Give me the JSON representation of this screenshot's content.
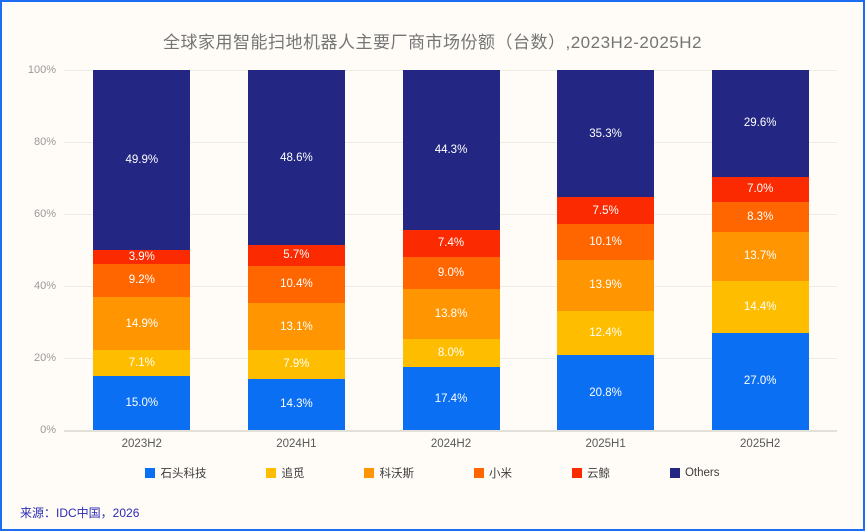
{
  "frame": {
    "border_color": "#1d6cf4",
    "background": "#fffcf7"
  },
  "title": "全球家用智能扫地机器人主要厂商市场份额（台数）,2023H2-2025H2",
  "source": "来源：IDC中国，2026",
  "chart_data": {
    "type": "bar",
    "stacked": true,
    "title": "全球家用智能扫地机器人主要厂商市场份额（台数）,2023H2-2025H2",
    "categories": [
      "2023H2",
      "2024H1",
      "2024H2",
      "2025H1",
      "2025H2"
    ],
    "series": [
      {
        "name": "石头科技",
        "color": "#0a6ff2",
        "values": [
          15.0,
          14.3,
          17.4,
          20.8,
          27.0
        ]
      },
      {
        "name": "追觅",
        "color": "#ffbd00",
        "values": [
          7.1,
          7.9,
          8.0,
          12.4,
          14.4
        ]
      },
      {
        "name": "科沃斯",
        "color": "#ff9500",
        "values": [
          14.9,
          13.1,
          13.8,
          13.9,
          13.7
        ]
      },
      {
        "name": "小米",
        "color": "#ff6600",
        "values": [
          9.2,
          10.4,
          9.0,
          10.1,
          8.3
        ]
      },
      {
        "name": "云鲸",
        "color": "#fc2a00",
        "values": [
          3.9,
          5.7,
          7.4,
          7.5,
          7.0
        ]
      },
      {
        "name": "Others",
        "color": "#232682",
        "values": [
          49.9,
          48.6,
          44.3,
          35.3,
          29.6
        ]
      }
    ],
    "ylabel": "",
    "xlabel": "",
    "ylim": [
      0,
      100
    ],
    "yticks": [
      "0%",
      "20%",
      "40%",
      "60%",
      "80%",
      "100%"
    ],
    "grid": true,
    "legend_position": "bottom",
    "value_label_format": "one-decimal-percent"
  }
}
